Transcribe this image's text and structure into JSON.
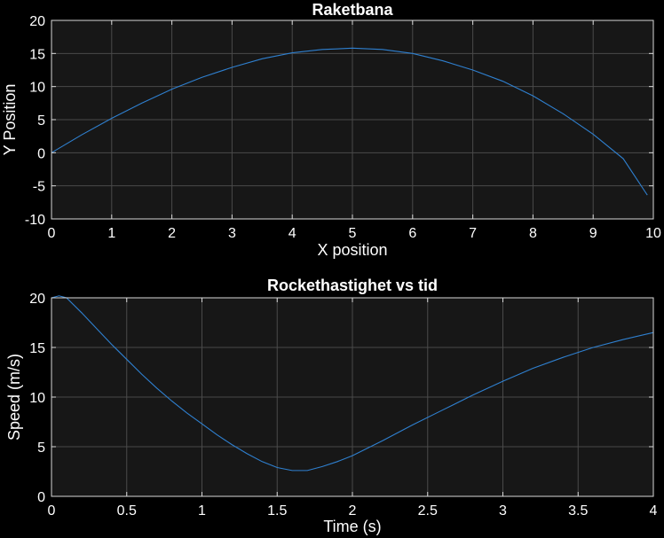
{
  "chart_data": [
    {
      "type": "line",
      "title": "Raketbana",
      "xlabel": "X position",
      "ylabel": "Y Position",
      "xlim": [
        0,
        10
      ],
      "ylim": [
        -10,
        20
      ],
      "xticks": [
        0,
        1,
        2,
        3,
        4,
        5,
        6,
        7,
        8,
        9,
        10
      ],
      "yticks": [
        -10,
        -5,
        0,
        5,
        10,
        15,
        20
      ],
      "xtick_labels": [
        "0",
        "1",
        "2",
        "3",
        "4",
        "5",
        "6",
        "7",
        "8",
        "9",
        "10"
      ],
      "ytick_labels": [
        "-10",
        "-5",
        "0",
        "5",
        "10",
        "15",
        "20"
      ],
      "grid": true,
      "legend": "none",
      "series": [
        {
          "color": "#2f80d0",
          "x": [
            0,
            0.5,
            1,
            1.5,
            2,
            2.5,
            3,
            3.5,
            4,
            4.5,
            5,
            5.5,
            6,
            6.5,
            7,
            7.5,
            8,
            8.5,
            9,
            9.5,
            9.9
          ],
          "y": [
            0,
            2.7,
            5.2,
            7.5,
            9.6,
            11.4,
            12.9,
            14.2,
            15.1,
            15.6,
            15.8,
            15.6,
            15.0,
            13.9,
            12.5,
            10.8,
            8.6,
            5.9,
            2.8,
            -0.9,
            -6.4
          ]
        }
      ]
    },
    {
      "type": "line",
      "title": "Rockethastighet vs tid",
      "xlabel": "Time (s)",
      "ylabel": "Speed (m/s)",
      "xlim": [
        0,
        4
      ],
      "ylim": [
        0,
        20
      ],
      "xticks": [
        0,
        0.5,
        1,
        1.5,
        2,
        2.5,
        3,
        3.5,
        4
      ],
      "yticks": [
        0,
        5,
        10,
        15,
        20
      ],
      "xtick_labels": [
        "0",
        "0.5",
        "1",
        "1.5",
        "2",
        "2.5",
        "3",
        "3.5",
        "4"
      ],
      "ytick_labels": [
        "0",
        "5",
        "10",
        "15",
        "20"
      ],
      "grid": true,
      "legend": "none",
      "series": [
        {
          "color": "#2f80d0",
          "x": [
            0,
            0.05,
            0.1,
            0.2,
            0.3,
            0.4,
            0.5,
            0.6,
            0.7,
            0.8,
            0.9,
            1.0,
            1.1,
            1.2,
            1.3,
            1.4,
            1.5,
            1.6,
            1.7,
            1.8,
            1.9,
            2.0,
            2.2,
            2.4,
            2.6,
            2.8,
            3.0,
            3.2,
            3.4,
            3.6,
            3.8,
            4.0
          ],
          "y": [
            20.0,
            20.2,
            20.0,
            18.5,
            16.9,
            15.3,
            13.8,
            12.3,
            10.9,
            9.6,
            8.4,
            7.3,
            6.2,
            5.2,
            4.3,
            3.5,
            2.9,
            2.6,
            2.6,
            3.0,
            3.5,
            4.1,
            5.6,
            7.2,
            8.7,
            10.2,
            11.6,
            12.9,
            14.0,
            15.0,
            15.8,
            16.5
          ]
        }
      ]
    }
  ]
}
